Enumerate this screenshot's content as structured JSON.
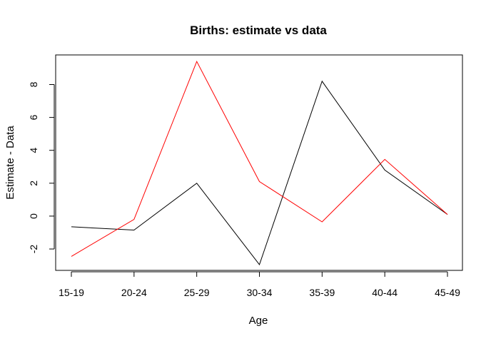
{
  "chart_data": {
    "type": "line",
    "title": "Births: estimate vs data",
    "xlabel": "Age",
    "ylabel": "Estimate - Data",
    "categories": [
      "15-19",
      "20-24",
      "25-29",
      "30-34",
      "35-39",
      "40-44",
      "45-49"
    ],
    "yticks": [
      -2,
      0,
      2,
      4,
      6,
      8
    ],
    "ylim": [
      -3.3,
      9.8
    ],
    "grid": false,
    "legend": "none",
    "series": [
      {
        "color": "#000000",
        "values": [
          -0.65,
          -0.85,
          2.0,
          -2.95,
          8.2,
          2.8,
          0.1
        ]
      },
      {
        "color": "#ff0000",
        "values": [
          -2.45,
          -0.2,
          9.4,
          2.1,
          -0.35,
          3.45,
          0.1
        ]
      }
    ]
  }
}
